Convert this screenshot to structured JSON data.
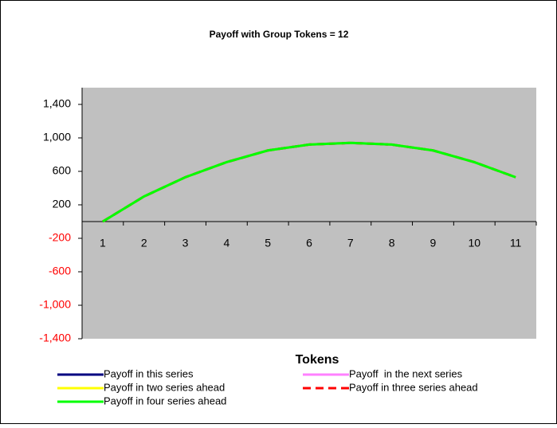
{
  "chart_data": {
    "type": "line",
    "title": "Payoff with Group Tokens = 12",
    "x_label": "Tokens",
    "categories": [
      "1",
      "2",
      "3",
      "4",
      "5",
      "6",
      "7",
      "8",
      "9",
      "10",
      "11"
    ],
    "series": [
      {
        "name": "Payoff in this series",
        "color": "#000080",
        "values": [
          0,
          300,
          530,
          710,
          850,
          920,
          940,
          920,
          850,
          710,
          530
        ]
      },
      {
        "name": "Payoff  in the next series",
        "color": "#ff80ff",
        "values": [
          0,
          300,
          530,
          710,
          850,
          920,
          940,
          920,
          850,
          710,
          530
        ]
      },
      {
        "name": "Payoff in two series ahead",
        "color": "#ffff00",
        "values": [
          0,
          300,
          530,
          710,
          850,
          920,
          940,
          920,
          850,
          710,
          530
        ]
      },
      {
        "name": "Payoff in three series ahead",
        "color": "#ff0000",
        "dashed": true,
        "values": [
          0,
          300,
          530,
          710,
          850,
          920,
          940,
          920,
          850,
          710,
          530
        ]
      },
      {
        "name": "Payoff in four series ahead",
        "color": "#00ff00",
        "values": [
          0,
          300,
          530,
          710,
          850,
          920,
          940,
          920,
          850,
          710,
          530
        ]
      }
    ],
    "ylim": [
      -1400,
      1600
    ],
    "yticks": [
      {
        "value": 1400,
        "label": "1,400"
      },
      {
        "value": 1000,
        "label": "1,000"
      },
      600,
      200,
      -200,
      -600,
      {
        "value": -1000,
        "label": "-1,000"
      },
      {
        "value": -1400,
        "label": "-1,400"
      }
    ],
    "negative_tick_color": "#ff0000",
    "plot_background": "#c0c0c0",
    "grid": false
  }
}
